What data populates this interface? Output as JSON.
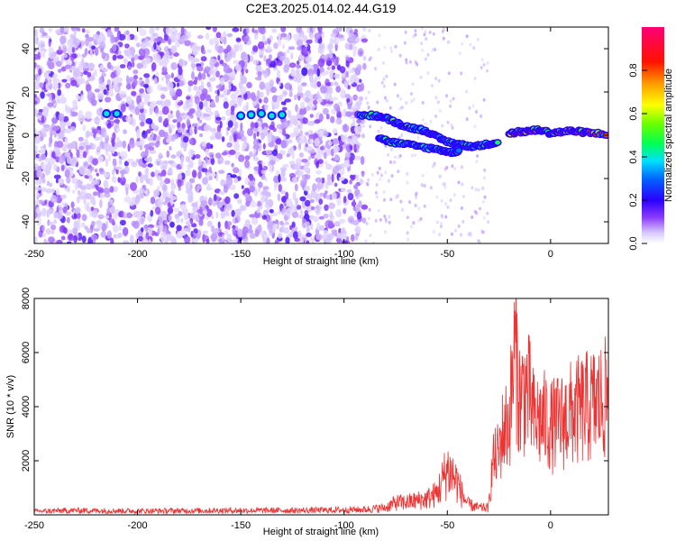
{
  "title": "C2E3.2025.014.02.44.G19",
  "chart_data": [
    {
      "type": "heatmap",
      "xlabel": "Height of straight line (km)",
      "ylabel": "Frequency (Hz)",
      "xlim": [
        -250,
        28
      ],
      "ylim": [
        -50,
        50
      ],
      "xticks": [
        -250,
        -200,
        -150,
        -100,
        -50,
        0
      ],
      "yticks": [
        -40,
        -20,
        0,
        20,
        40
      ],
      "xtick_labels": [
        "-250",
        "-200",
        "-150",
        "-100",
        "-50",
        "0"
      ],
      "ytick_labels": [
        "-40",
        "-20",
        "0",
        "20",
        "40"
      ],
      "colorbar": {
        "label": "Normalized spectral amplitude",
        "range": [
          0,
          1
        ],
        "ticks": [
          0.0,
          0.2,
          0.4,
          0.6,
          0.8
        ],
        "tick_labels": [
          "0.0",
          "0.2",
          "0.4",
          "0.6",
          "0.8"
        ],
        "colors": [
          "#ffffff",
          "#e6dcff",
          "#b28cff",
          "#7a1fff",
          "#3a00ff",
          "#0080ff",
          "#00e5ff",
          "#00ff66",
          "#88ff00",
          "#ffff00",
          "#ff9900",
          "#ff0000",
          "#ff0080"
        ]
      },
      "ridge": {
        "description_free": true,
        "upper_branch": [
          [
            -92,
            9.5
          ],
          [
            -85,
            9
          ],
          [
            -80,
            8
          ],
          [
            -75,
            6
          ],
          [
            -70,
            4
          ],
          [
            -65,
            3
          ],
          [
            -60,
            2
          ],
          [
            -55,
            -1
          ],
          [
            -50,
            -3
          ],
          [
            -45,
            -4
          ],
          [
            -40,
            -5
          ],
          [
            -35,
            -5
          ],
          [
            -30,
            -4
          ],
          [
            -25,
            -3
          ]
        ],
        "lower_branch": [
          [
            -83,
            -1
          ],
          [
            -78,
            -3
          ],
          [
            -72,
            -4
          ],
          [
            -65,
            -5
          ],
          [
            -58,
            -6
          ],
          [
            -52,
            -7
          ],
          [
            -48,
            -8
          ],
          [
            -44,
            -7
          ]
        ],
        "tail": [
          [
            -20,
            1
          ],
          [
            -15,
            1.5
          ],
          [
            -10,
            2
          ],
          [
            -5,
            2.5
          ],
          [
            0,
            1
          ],
          [
            5,
            1.5
          ],
          [
            10,
            2
          ],
          [
            15,
            1.5
          ],
          [
            20,
            1
          ],
          [
            28,
            0.5
          ]
        ],
        "spots": [
          [
            -150,
            9
          ],
          [
            -145,
            9.5
          ],
          [
            -140,
            10
          ],
          [
            -135,
            9
          ],
          [
            -130,
            9.5
          ],
          [
            -215,
            10
          ],
          [
            -210,
            10
          ]
        ]
      }
    },
    {
      "type": "line",
      "xlabel": "Height of straight line (km)",
      "ylabel": "SNR (10 * v/v)",
      "xlim": [
        -250,
        28
      ],
      "ylim": [
        0,
        8000
      ],
      "xticks": [
        -250,
        -200,
        -150,
        -100,
        -50,
        0
      ],
      "yticks": [
        2000,
        4000,
        6000,
        8000
      ],
      "xtick_labels": [
        "-250",
        "-200",
        "-150",
        "-100",
        "-50",
        "0"
      ],
      "ytick_labels": [
        "2000",
        "4000",
        "6000",
        "8000"
      ],
      "series_color": "#ee3333",
      "envelope": [
        [
          -250,
          200
        ],
        [
          -230,
          250
        ],
        [
          -200,
          220
        ],
        [
          -150,
          250
        ],
        [
          -120,
          250
        ],
        [
          -100,
          280
        ],
        [
          -90,
          300
        ],
        [
          -80,
          400
        ],
        [
          -75,
          700
        ],
        [
          -70,
          700
        ],
        [
          -65,
          800
        ],
        [
          -60,
          900
        ],
        [
          -55,
          1200
        ],
        [
          -50,
          2600
        ],
        [
          -47,
          2200
        ],
        [
          -45,
          1800
        ],
        [
          -43,
          1200
        ],
        [
          -40,
          600
        ],
        [
          -35,
          400
        ],
        [
          -30,
          400
        ],
        [
          -28,
          2500
        ],
        [
          -25,
          3000
        ],
        [
          -23,
          4000
        ],
        [
          -20,
          4500
        ],
        [
          -18,
          7000
        ],
        [
          -17,
          8000
        ],
        [
          -15,
          5500
        ],
        [
          -12,
          6000
        ],
        [
          -10,
          5500
        ],
        [
          -8,
          4500
        ],
        [
          -5,
          4500
        ],
        [
          -2,
          4500
        ],
        [
          0,
          4200
        ],
        [
          5,
          4400
        ],
        [
          10,
          4800
        ],
        [
          15,
          5000
        ],
        [
          20,
          5200
        ],
        [
          25,
          5400
        ],
        [
          28,
          5600
        ]
      ]
    }
  ]
}
